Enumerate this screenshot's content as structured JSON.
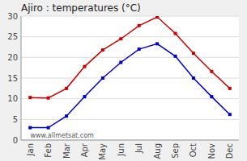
{
  "chart_data": {
    "type": "line",
    "title": "Ajiro : temperatures (°C)",
    "categories": [
      "Jan",
      "Feb",
      "Mar",
      "Apr",
      "May",
      "Jun",
      "Jul",
      "Aug",
      "Sep",
      "Oct",
      "Nov",
      "Dec"
    ],
    "series": [
      {
        "color": "#cc0000",
        "marker": "square",
        "values": [
          10.3,
          10.2,
          12.5,
          17.8,
          21.8,
          24.5,
          27.7,
          29.8,
          25.8,
          21.0,
          16.6,
          12.5
        ]
      },
      {
        "color": "#0000cc",
        "marker": "square",
        "values": [
          3.0,
          3.0,
          5.8,
          10.5,
          15.0,
          18.8,
          22.0,
          23.3,
          20.3,
          15.0,
          10.5,
          6.2
        ]
      }
    ],
    "ylim": [
      0,
      30
    ],
    "yticks": [
      0,
      5,
      10,
      15,
      20,
      25,
      30
    ],
    "grid": true,
    "annotations": [
      "www.allmetsat.com"
    ]
  }
}
